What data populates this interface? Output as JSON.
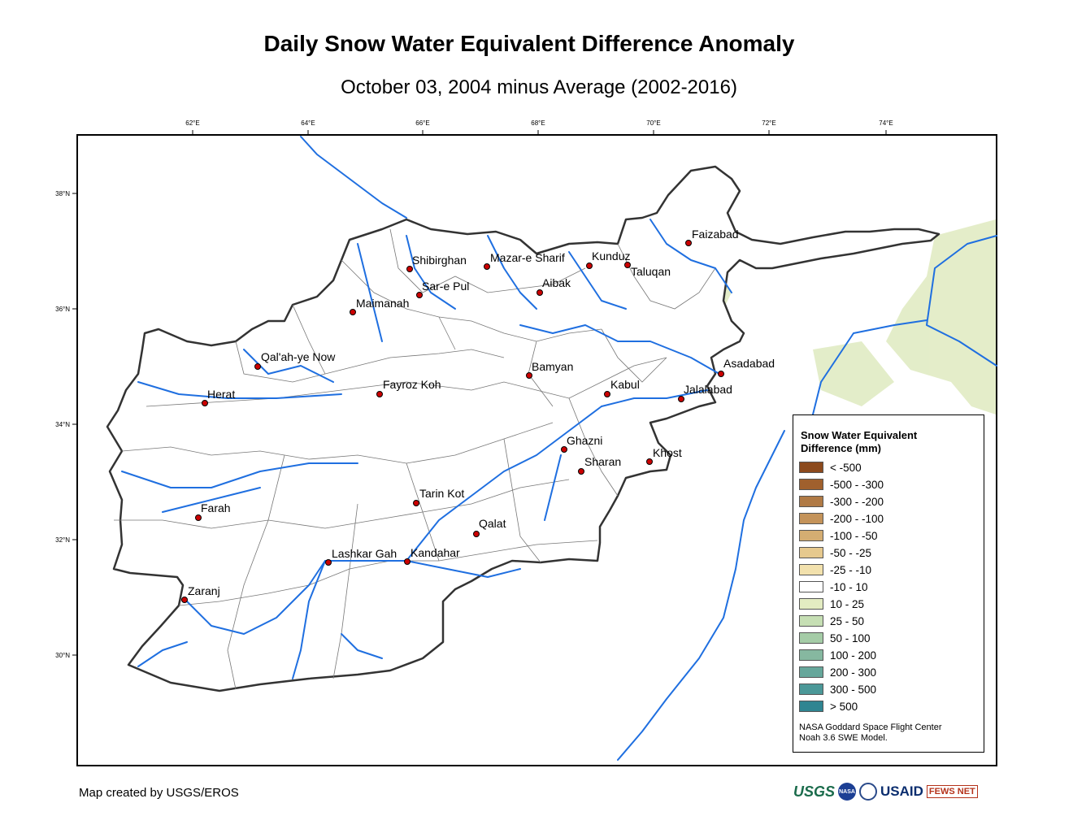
{
  "title": "Daily Snow Water Equivalent Difference Anomaly",
  "subtitle": "October 03, 2004 minus Average (2002-2016)",
  "credit": "Map created by USGS/EROS",
  "graticule": {
    "lon_labels": [
      "62°E",
      "64°E",
      "66°E",
      "68°E",
      "70°E",
      "72°E",
      "74°E"
    ],
    "lat_labels": [
      "38°N",
      "36°N",
      "34°N",
      "32°N",
      "30°N"
    ]
  },
  "cities": [
    {
      "name": "Faizabad"
    },
    {
      "name": "Shibirghan"
    },
    {
      "name": "Mazar-e Sharif"
    },
    {
      "name": "Kunduz"
    },
    {
      "name": "Taluqan"
    },
    {
      "name": "Sar-e Pul"
    },
    {
      "name": "Aibak"
    },
    {
      "name": "Maimanah"
    },
    {
      "name": "Qal'ah-ye Now"
    },
    {
      "name": "Asadabad"
    },
    {
      "name": "Bamyan"
    },
    {
      "name": "Kabul"
    },
    {
      "name": "Jalalabad"
    },
    {
      "name": "Fayroz Koh"
    },
    {
      "name": "Herat"
    },
    {
      "name": "Ghazni"
    },
    {
      "name": "Khost"
    },
    {
      "name": "Sharan"
    },
    {
      "name": "Tarin Kot"
    },
    {
      "name": "Farah"
    },
    {
      "name": "Qalat"
    },
    {
      "name": "Lashkar Gah"
    },
    {
      "name": "Kandahar"
    },
    {
      "name": "Zaranj"
    }
  ],
  "legend": {
    "title_line1": "Snow Water Equivalent",
    "title_line2": "Difference (mm)",
    "items": [
      {
        "label": "< -500",
        "color": "#8c4a1d"
      },
      {
        "label": "-500 - -300",
        "color": "#a0602d"
      },
      {
        "label": "-300 - -200",
        "color": "#b07a45"
      },
      {
        "label": "-200 - -100",
        "color": "#c4935a"
      },
      {
        "label": "-100 - -50",
        "color": "#d4ad72"
      },
      {
        "label": "-50 - -25",
        "color": "#e6c98e"
      },
      {
        "label": "-25 - -10",
        "color": "#f2e1ad"
      },
      {
        "label": "-10 - 10",
        "color": "#ffffff"
      },
      {
        "label": "10 - 25",
        "color": "#e3ecc2"
      },
      {
        "label": "25 - 50",
        "color": "#c6dfb4"
      },
      {
        "label": "50 - 100",
        "color": "#a5cca7"
      },
      {
        "label": "100 - 200",
        "color": "#86b8a0"
      },
      {
        "label": "200 - 300",
        "color": "#66a79b"
      },
      {
        "label": "300 - 500",
        "color": "#4b9898"
      },
      {
        "label": "> 500",
        "color": "#2f8591"
      }
    ],
    "note_line1": "NASA Goddard Space Flight Center",
    "note_line2": "Noah 3.6 SWE Model."
  },
  "logos": {
    "usgs": "USGS",
    "nasa": "NASA",
    "usaid": "USAID",
    "fews": "FEWS NET"
  },
  "colors": {
    "river": "#1f6fe0",
    "border": "#333333",
    "city": "#cc0000",
    "snow_light": "#dfeac0"
  }
}
